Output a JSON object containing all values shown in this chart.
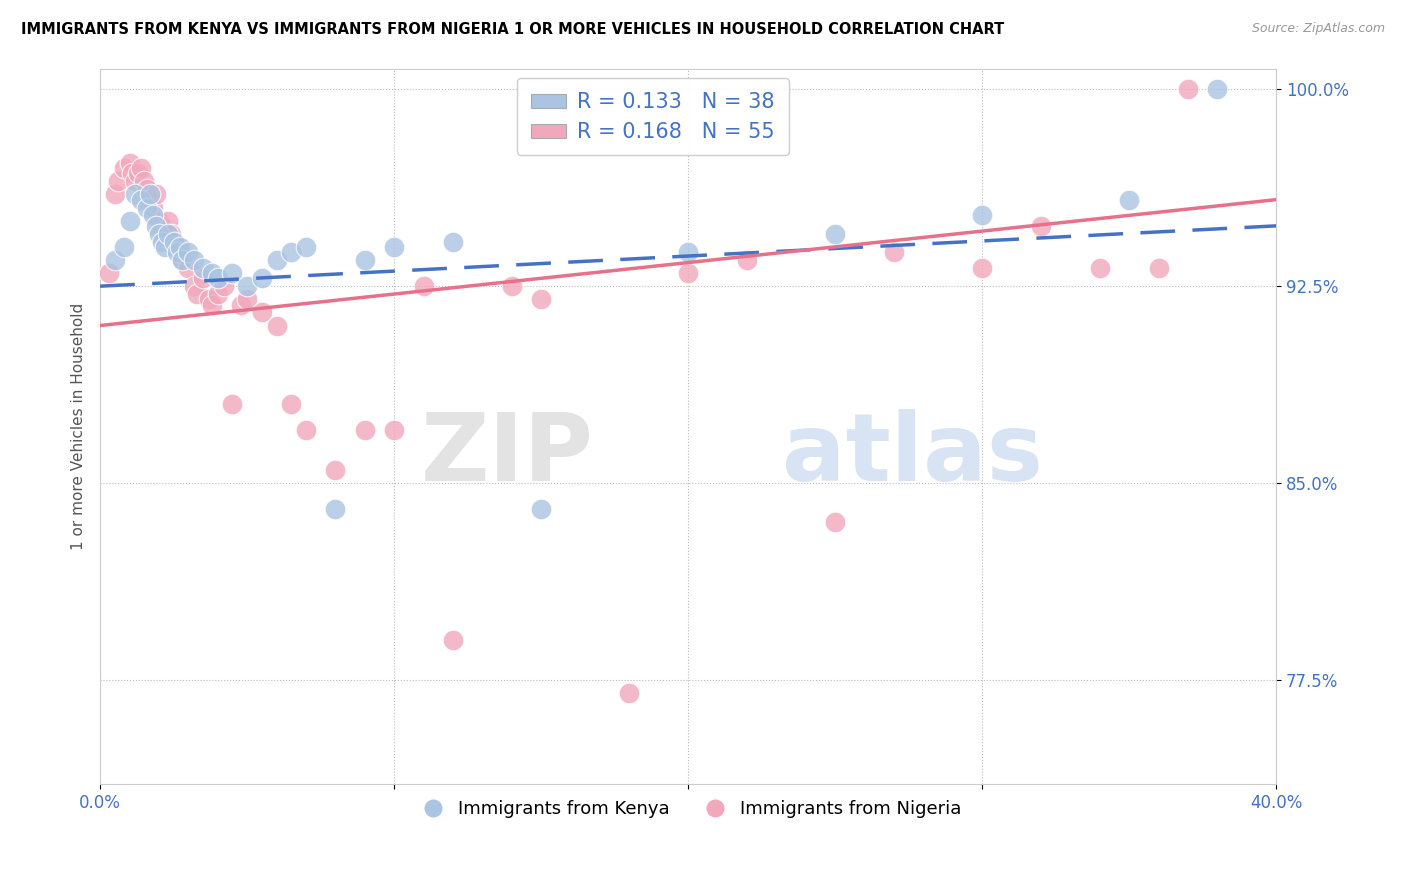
{
  "title": "IMMIGRANTS FROM KENYA VS IMMIGRANTS FROM NIGERIA 1 OR MORE VEHICLES IN HOUSEHOLD CORRELATION CHART",
  "source": "Source: ZipAtlas.com",
  "ylabel": "1 or more Vehicles in Household",
  "xlim": [
    0.0,
    0.4
  ],
  "ylim": [
    0.735,
    1.008
  ],
  "yticks": [
    0.775,
    0.85,
    0.925,
    1.0
  ],
  "ytick_labels": [
    "77.5%",
    "85.0%",
    "92.5%",
    "100.0%"
  ],
  "xticks": [
    0.0,
    0.1,
    0.2,
    0.3,
    0.4
  ],
  "xtick_labels": [
    "0.0%",
    "",
    "",
    "",
    "40.0%"
  ],
  "kenya_color": "#aac4e2",
  "nigeria_color": "#f2a8bc",
  "kenya_line_color": "#4472c4",
  "nigeria_line_color": "#e8708a",
  "kenya_R": 0.133,
  "kenya_N": 38,
  "nigeria_R": 0.168,
  "nigeria_N": 55,
  "legend_label_kenya": "Immigrants from Kenya",
  "legend_label_nigeria": "Immigrants from Nigeria",
  "watermark_zip": "ZIP",
  "watermark_atlas": "atlas",
  "kenya_x": [
    0.005,
    0.008,
    0.01,
    0.012,
    0.014,
    0.016,
    0.017,
    0.018,
    0.019,
    0.02,
    0.021,
    0.022,
    0.023,
    0.025,
    0.026,
    0.027,
    0.028,
    0.03,
    0.032,
    0.035,
    0.038,
    0.04,
    0.045,
    0.05,
    0.055,
    0.06,
    0.065,
    0.07,
    0.08,
    0.09,
    0.1,
    0.12,
    0.15,
    0.2,
    0.25,
    0.3,
    0.35,
    0.38
  ],
  "kenya_y": [
    0.935,
    0.94,
    0.95,
    0.96,
    0.958,
    0.955,
    0.96,
    0.952,
    0.948,
    0.945,
    0.942,
    0.94,
    0.945,
    0.942,
    0.938,
    0.94,
    0.935,
    0.938,
    0.935,
    0.932,
    0.93,
    0.928,
    0.93,
    0.925,
    0.928,
    0.935,
    0.938,
    0.94,
    0.84,
    0.935,
    0.94,
    0.942,
    0.84,
    0.938,
    0.945,
    0.952,
    0.958,
    1.0
  ],
  "nigeria_x": [
    0.003,
    0.005,
    0.006,
    0.008,
    0.01,
    0.011,
    0.012,
    0.013,
    0.014,
    0.015,
    0.016,
    0.017,
    0.018,
    0.019,
    0.02,
    0.021,
    0.022,
    0.023,
    0.024,
    0.025,
    0.026,
    0.027,
    0.028,
    0.03,
    0.032,
    0.033,
    0.035,
    0.037,
    0.038,
    0.04,
    0.042,
    0.045,
    0.048,
    0.05,
    0.055,
    0.06,
    0.065,
    0.07,
    0.08,
    0.09,
    0.1,
    0.11,
    0.12,
    0.14,
    0.15,
    0.18,
    0.2,
    0.22,
    0.25,
    0.27,
    0.3,
    0.32,
    0.34,
    0.36,
    0.37
  ],
  "nigeria_y": [
    0.93,
    0.96,
    0.965,
    0.97,
    0.972,
    0.968,
    0.965,
    0.968,
    0.97,
    0.965,
    0.962,
    0.958,
    0.955,
    0.96,
    0.95,
    0.948,
    0.945,
    0.95,
    0.945,
    0.942,
    0.94,
    0.938,
    0.935,
    0.932,
    0.925,
    0.922,
    0.928,
    0.92,
    0.918,
    0.922,
    0.925,
    0.88,
    0.918,
    0.92,
    0.915,
    0.91,
    0.88,
    0.87,
    0.855,
    0.87,
    0.87,
    0.925,
    0.79,
    0.925,
    0.92,
    0.77,
    0.93,
    0.935,
    0.835,
    0.938,
    0.932,
    0.948,
    0.932,
    0.932,
    1.0
  ],
  "kenya_line_x0": 0.0,
  "kenya_line_y0": 0.925,
  "kenya_line_x1": 0.4,
  "kenya_line_y1": 0.948,
  "nigeria_line_x0": 0.0,
  "nigeria_line_y0": 0.91,
  "nigeria_line_x1": 0.4,
  "nigeria_line_y1": 0.958
}
